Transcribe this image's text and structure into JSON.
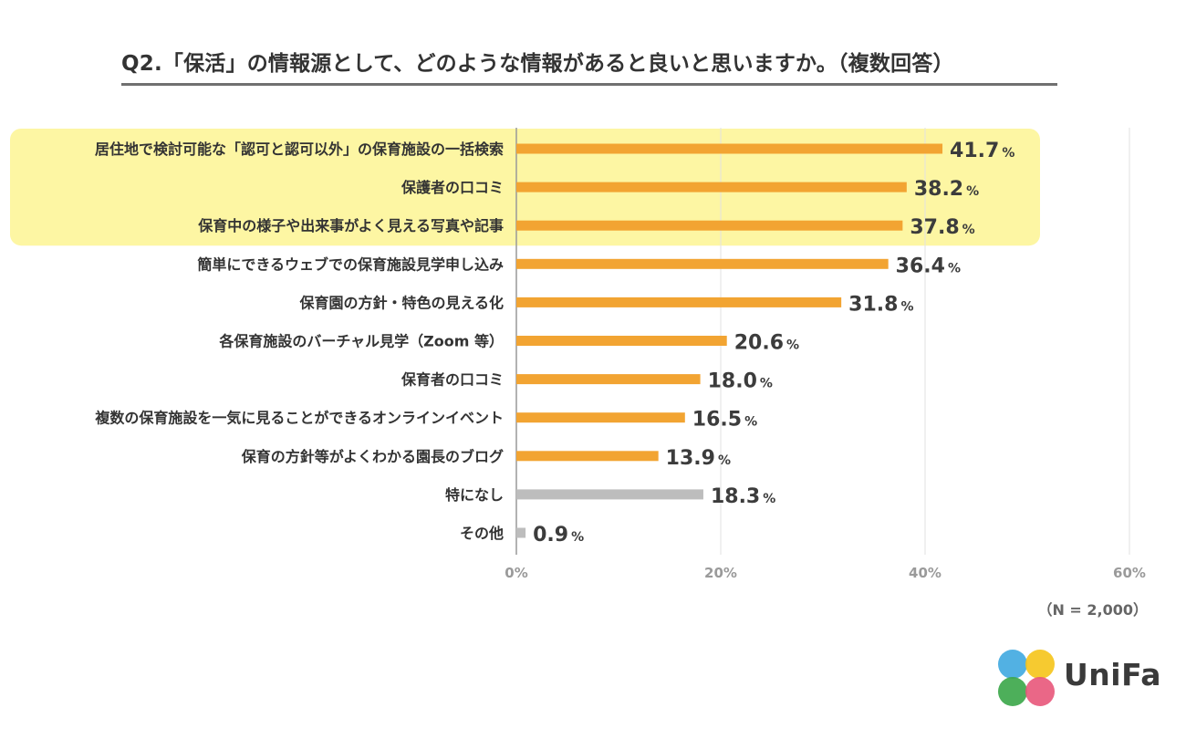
{
  "title": "Q2.「保活」の情報源として、どのような情報があると良いと思いますか。（複数回答）",
  "note": "（N = 2,000）",
  "logo": {
    "name": "UniFa",
    "dot_colors": [
      "#3fa9e0",
      "#f5c41a",
      "#3aa648",
      "#e8577a"
    ]
  },
  "colors": {
    "bar": "#f2a432",
    "bar_other": "#bdbdbd",
    "highlight": "#fdf6a3",
    "grid": "#e2e2e2",
    "axis": "#999999"
  },
  "chart_data": {
    "type": "bar",
    "orientation": "horizontal",
    "title": "Q2.「保活」の情報源として、どのような情報があると良いと思いますか。（複数回答）",
    "categories": [
      "居住地で検討可能な「認可と認可以外」の保育施設の一括検索",
      "保護者の口コミ",
      "保育中の様子や出来事がよく見える写真や記事",
      "簡単にできるウェブでの保育施設見学申し込み",
      "保育園の方針・特色の見える化",
      "各保育施設のバーチャル見学（Zoom 等）",
      "保育者の口コミ",
      "複数の保育施設を一気に見ることができるオンラインイベント",
      "保育の方針等がよくわかる園長のブログ",
      "特になし",
      "その他"
    ],
    "values": [
      41.7,
      38.2,
      37.8,
      36.4,
      31.8,
      20.6,
      18.0,
      16.5,
      13.9,
      18.3,
      0.9
    ],
    "value_labels": [
      "41.7",
      "38.2",
      "37.8",
      "36.4",
      "31.8",
      "20.6",
      "18.0",
      "16.5",
      "13.9",
      "18.3",
      "0.9"
    ],
    "unit": "%",
    "gray_from_index": 9,
    "highlight_indices": [
      0,
      1,
      2
    ],
    "xlim": [
      0,
      60
    ],
    "xticks": [
      0,
      20,
      40,
      60
    ],
    "xtick_labels": [
      "0%",
      "20%",
      "40%",
      "60%"
    ],
    "grid": true
  }
}
